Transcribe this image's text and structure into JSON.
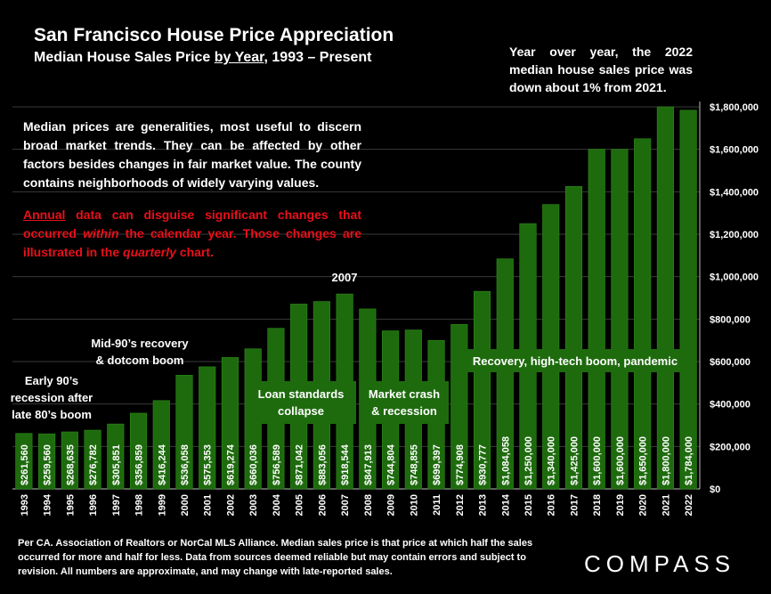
{
  "header": {
    "title": "San Francisco House Price Appreciation",
    "subtitle_pre": "Median House Sales Price ",
    "subtitle_underlined": "by Year",
    "subtitle_post": ", 1993 – Present"
  },
  "yoy_note": "Year over year, the 2022 median house sales price was down about 1% from 2021.",
  "note": {
    "paragraph1": "Median prices are generalities, most useful to discern broad market trends. They can be affected by other factors besides changes in fair market value. The county contains neighborhoods of widely varying values.",
    "p2_underlined": "Annual",
    "p2_a": " data can disguise significant changes that occurred ",
    "p2_italic1": "within",
    "p2_b": " the calendar year. Those changes are illustrated in the ",
    "p2_italic2": "quarterly",
    "p2_c": " chart."
  },
  "footer": "Per CA. Association of Realtors or NorCal MLS Alliance. Median sales price is that price at which half the sales occurred for more and half for less. Data from sources deemed reliable but may contain errors and subject to revision. All numbers are approximate, and may change with late-reported sales.",
  "logo": "COMPASS",
  "colors": {
    "bar": "#1e6b0e",
    "bar_edge": "#2f8a1a",
    "grid": "#3a3a3a",
    "text": "#ffffff",
    "red_text": "#e8101a"
  },
  "chart_data": {
    "type": "bar",
    "categories": [
      "1993",
      "1994",
      "1995",
      "1996",
      "1997",
      "1998",
      "1999",
      "2000",
      "2001",
      "2002",
      "2003",
      "2004",
      "2005",
      "2006",
      "2007",
      "2008",
      "2009",
      "2010",
      "2011",
      "2012",
      "2013",
      "2014",
      "2015",
      "2016",
      "2017",
      "2018",
      "2019",
      "2020",
      "2021",
      "2022"
    ],
    "values": [
      261560,
      259560,
      268635,
      276782,
      305851,
      356859,
      416244,
      536058,
      575353,
      619274,
      660036,
      756589,
      871042,
      883056,
      918544,
      847913,
      744804,
      748855,
      699397,
      774908,
      930777,
      1084058,
      1250000,
      1340000,
      1425000,
      1600000,
      1600000,
      1650000,
      1800000,
      1784000
    ],
    "data_labels": [
      "$261,560",
      "$259,560",
      "$268,635",
      "$276,782",
      "$305,851",
      "$356,859",
      "$416,244",
      "$536,058",
      "$575,353",
      "$619,274",
      "$660,036",
      "$756,589",
      "$871,042",
      "$883,056",
      "$918,544",
      "$847,913",
      "$744,804",
      "$748,855",
      "$699,397",
      "$774,908",
      "$930,777",
      "$1,084,058",
      "$1,250,000",
      "$1,340,000",
      "$1,425,000",
      "$1,600,000",
      "$1,600,000",
      "$1,650,000",
      "$1,800,000",
      "$1,784,000"
    ],
    "ylim": [
      0,
      1800000
    ],
    "y_ticks": [
      0,
      200000,
      400000,
      600000,
      800000,
      1000000,
      1200000,
      1400000,
      1600000,
      1800000
    ],
    "y_tick_labels": [
      "$0",
      "$200,000",
      "$400,000",
      "$600,000",
      "$800,000",
      "$1,000,000",
      "$1,200,000",
      "$1,400,000",
      "$1,600,000",
      "$1,800,000"
    ],
    "y_axis_side": "right",
    "grid": true,
    "annotations": [
      {
        "text": "Early 90’s recession after late 80’s boom",
        "lines": [
          "Early 90’s",
          "recession after",
          "late 80’s boom"
        ],
        "boxed": false
      },
      {
        "text": "Mid-90’s recovery & dotcom boom",
        "lines": [
          "Mid-90’s recovery",
          "& dotcom boom"
        ],
        "boxed": false
      },
      {
        "text": "2007",
        "lines": [
          "2007"
        ],
        "boxed": false
      },
      {
        "text": "Loan standards collapse",
        "lines": [
          "Loan standards",
          "collapse"
        ],
        "boxed": true
      },
      {
        "text": "Market crash & recession",
        "lines": [
          "Market crash",
          "& recession"
        ],
        "boxed": true
      },
      {
        "text": "Recovery, high-tech boom, pandemic",
        "lines": [
          "Recovery, high-tech boom, pandemic"
        ],
        "boxed": true
      }
    ]
  }
}
